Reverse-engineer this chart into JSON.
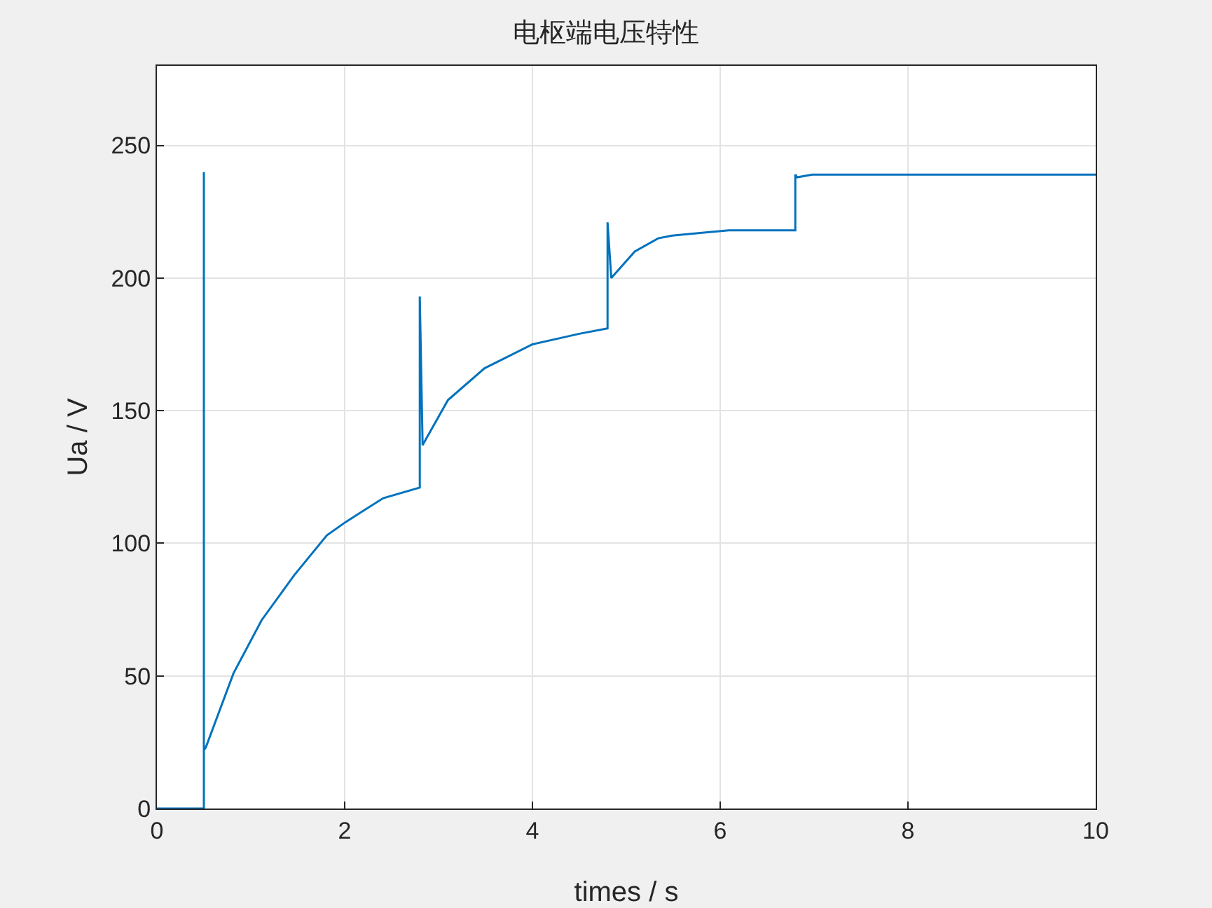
{
  "chart_data": {
    "type": "line",
    "title": "电枢端电压特性",
    "xlabel": "times / s",
    "ylabel": "Ua / V",
    "x": [
      0,
      0.5,
      0.5,
      0.5,
      0.52,
      0.816,
      1.115,
      1.463,
      1.81,
      2.01,
      2.41,
      2.8,
      2.8,
      2.83,
      3.1,
      3.49,
      4.0,
      4.5,
      4.8,
      4.8,
      4.84,
      5.09,
      5.34,
      5.49,
      6.09,
      6.8,
      6.8,
      6.82,
      6.98,
      10
    ],
    "series": [
      {
        "color": "#0072bd",
        "values": [
          0,
          0,
          240,
          22,
          23,
          51,
          71,
          88,
          103,
          108,
          117,
          121,
          193,
          137,
          154,
          166,
          175,
          179,
          181,
          221,
          200,
          210,
          215,
          216,
          218,
          218,
          239,
          238,
          239,
          239
        ]
      }
    ],
    "xlim": [
      0,
      10
    ],
    "ylim": [
      0,
      280
    ],
    "xticks": [
      0,
      2,
      4,
      6,
      8,
      10
    ],
    "yticks": [
      0,
      50,
      100,
      150,
      200,
      250
    ],
    "grid": true,
    "marker": "none",
    "line_style": "solid"
  }
}
